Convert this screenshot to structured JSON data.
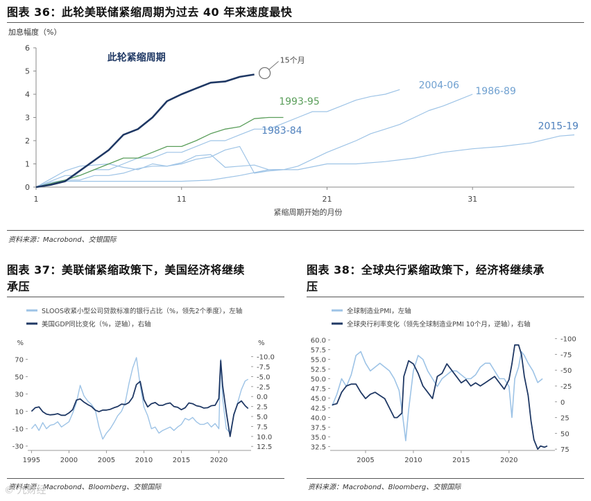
{
  "charts": {
    "c36": {
      "title": "图表 36：此轮美联储紧缩周期为过去 40 年来速度最快",
      "source": "资料来源：Macrobond、交银国际",
      "chart_data": {
        "type": "line",
        "ylabel": "加息幅度（%）",
        "xlabel": "紧缩周期开始的月份",
        "xlim": [
          1,
          38
        ],
        "ylim": [
          0,
          6
        ],
        "xticks": [
          1,
          11,
          21,
          31
        ],
        "yticks": [
          0,
          1,
          2,
          3,
          4,
          5,
          6
        ],
        "annotation": "15个月",
        "series": [
          {
            "name": "此轮紧缩周期",
            "color": "#1f3864",
            "width": 2.6,
            "x": [
              1,
              2,
              3,
              4,
              5,
              6,
              7,
              8,
              9,
              10,
              11,
              12,
              13,
              14,
              15,
              16
            ],
            "y": [
              0.0,
              0.1,
              0.25,
              0.7,
              1.15,
              1.6,
              2.25,
              2.5,
              3.0,
              3.7,
              4.0,
              4.25,
              4.5,
              4.55,
              4.75,
              4.85
            ]
          },
          {
            "name": "1993-95",
            "color": "#5a9e5a",
            "width": 1.3,
            "x": [
              1,
              2,
              3,
              4,
              5,
              6,
              7,
              8,
              9,
              10,
              11,
              12,
              13,
              14,
              15,
              16,
              17,
              18
            ],
            "y": [
              0.0,
              0.15,
              0.3,
              0.5,
              0.75,
              1.0,
              1.25,
              1.25,
              1.5,
              1.75,
              1.75,
              2.0,
              2.3,
              2.5,
              2.6,
              2.95,
              3.0,
              3.0
            ]
          },
          {
            "name": "1983-84",
            "color": "#9dc3e6",
            "width": 1.2,
            "x": [
              1,
              2,
              3,
              4,
              5,
              6,
              7,
              8,
              9,
              10,
              11,
              12,
              13,
              14,
              15,
              16,
              17,
              18
            ],
            "y": [
              0.0,
              0.35,
              0.7,
              0.9,
              0.95,
              1.0,
              0.85,
              0.75,
              1.0,
              0.9,
              1.05,
              1.35,
              1.4,
              0.85,
              0.9,
              0.95,
              0.75,
              0.75
            ]
          },
          {
            "name": "2004-06",
            "color": "#9dc3e6",
            "width": 1.2,
            "x": [
              1,
              2,
              3,
              4,
              5,
              6,
              7,
              8,
              9,
              10,
              11,
              12,
              13,
              14,
              15,
              16,
              17,
              18,
              19,
              20,
              21,
              22,
              23,
              24,
              25,
              26
            ],
            "y": [
              0.0,
              0.25,
              0.5,
              0.5,
              0.75,
              0.75,
              1.0,
              1.25,
              1.25,
              1.5,
              1.5,
              1.75,
              2.0,
              2.0,
              2.25,
              2.5,
              2.5,
              2.75,
              3.0,
              3.25,
              3.25,
              3.5,
              3.75,
              3.9,
              4.0,
              4.2
            ]
          },
          {
            "name": "1986-89",
            "color": "#9dc3e6",
            "width": 1.2,
            "x": [
              1,
              2,
              3,
              4,
              5,
              6,
              7,
              8,
              9,
              10,
              11,
              12,
              13,
              14,
              15,
              16,
              17,
              18,
              19,
              20,
              21,
              22,
              23,
              24,
              25,
              26,
              27,
              28,
              29,
              30,
              31
            ],
            "y": [
              0.0,
              0.2,
              0.3,
              0.3,
              0.5,
              0.5,
              0.6,
              0.8,
              0.9,
              0.9,
              1.0,
              1.2,
              1.3,
              1.6,
              1.75,
              0.6,
              0.7,
              0.75,
              0.9,
              1.2,
              1.5,
              1.75,
              2.0,
              2.3,
              2.5,
              2.7,
              3.0,
              3.3,
              3.5,
              3.75,
              4.0
            ]
          },
          {
            "name": "2015-19",
            "color": "#9dc3e6",
            "width": 1.2,
            "x": [
              1,
              3,
              5,
              7,
              9,
              11,
              13,
              15,
              17,
              19,
              21,
              23,
              25,
              27,
              29,
              31,
              33,
              35,
              37,
              38
            ],
            "y": [
              0.0,
              0.25,
              0.25,
              0.25,
              0.25,
              0.25,
              0.3,
              0.5,
              0.75,
              0.75,
              1.0,
              1.0,
              1.1,
              1.25,
              1.5,
              1.65,
              1.75,
              1.9,
              2.2,
              2.25
            ]
          }
        ],
        "labels": [
          {
            "text": "1993-95",
            "color": "#5a9e5a"
          },
          {
            "text": "1983-84",
            "color": "#4f81bd"
          },
          {
            "text": "2004-06",
            "color": "#6fa0d0"
          },
          {
            "text": "1986-89",
            "color": "#6fa0d0"
          },
          {
            "text": "2015-19",
            "color": "#4f81bd"
          },
          {
            "text": "此轮紧缩周期",
            "color": "#1f3864"
          }
        ]
      }
    },
    "c37": {
      "title_line1": "图表 37：美联储紧缩政策下，美国经济将继续",
      "title_line2": "承压",
      "source": "资料来源：Macrobond、Bloomberg、交银国际",
      "chart_data": {
        "type": "line",
        "left_unit": "%",
        "right_unit": "%",
        "xlim": [
          1994.5,
          2024.3
        ],
        "left_ylim": [
          -35,
          80
        ],
        "right_ylim": [
          13.5,
          -11.5
        ],
        "xticks": [
          1995,
          2000,
          2005,
          2010,
          2015,
          2020
        ],
        "left_yticks": [
          -30,
          -10,
          10,
          30,
          50,
          70
        ],
        "right_yticks": [
          -10.0,
          -7.5,
          -5.0,
          -2.5,
          0.0,
          2.5,
          5.0,
          7.5,
          10.0,
          12.5
        ],
        "right_ytick_labels": [
          "-10.0",
          "-7.5",
          "-5.0",
          "-2.5",
          "0.0",
          "2.5",
          "5.0",
          "7.5",
          "10.0",
          "12.5"
        ],
        "series": [
          {
            "name": "SLOOS收紧小型公司贷款标准的银行占比（%，领先2个季度），左轴",
            "axis": "left",
            "color": "#9dc3e6",
            "width": 1.4,
            "x": [
              1995,
              1995.5,
              1996,
              1996.5,
              1997,
              1997.5,
              1998,
              1998.5,
              1999,
              1999.5,
              2000,
              2000.5,
              2001,
              2001.5,
              2002,
              2002.5,
              2003,
              2003.5,
              2004,
              2004.5,
              2005,
              2005.5,
              2006,
              2006.5,
              2007,
              2007.5,
              2008,
              2008.5,
              2009,
              2009.5,
              2010,
              2010.5,
              2011,
              2011.5,
              2012,
              2012.5,
              2013,
              2013.5,
              2014,
              2014.5,
              2015,
              2015.5,
              2016,
              2016.5,
              2017,
              2017.5,
              2018,
              2018.5,
              2019,
              2019.5,
              2020,
              2020.25,
              2020.5,
              2021,
              2021.5,
              2022,
              2022.5,
              2023,
              2023.5,
              2023.9
            ],
            "y": [
              -10,
              -5,
              -12,
              -3,
              -10,
              -6,
              -5,
              -2,
              -8,
              -5,
              -2,
              8,
              20,
              40,
              28,
              22,
              18,
              12,
              -8,
              -22,
              -15,
              -10,
              -3,
              5,
              10,
              20,
              42,
              60,
              72,
              40,
              15,
              5,
              -10,
              -8,
              -15,
              -12,
              -10,
              -8,
              -12,
              -8,
              -5,
              2,
              0,
              3,
              -2,
              -5,
              -5,
              -3,
              -8,
              -4,
              -10,
              70,
              25,
              -10,
              -15,
              5,
              20,
              35,
              45,
              47
            ]
          },
          {
            "name": "美国GDP同比变化（%，逆轴），右轴",
            "axis": "right",
            "color": "#1f3864",
            "width": 1.8,
            "x": [
              1995,
              1995.5,
              1996,
              1996.5,
              1997,
              1997.5,
              1998,
              1998.5,
              1999,
              1999.5,
              2000,
              2000.5,
              2001,
              2001.5,
              2002,
              2002.5,
              2003,
              2003.5,
              2004,
              2004.5,
              2005,
              2005.5,
              2006,
              2006.5,
              2007,
              2007.5,
              2008,
              2008.5,
              2009,
              2009.5,
              2010,
              2010.5,
              2011,
              2011.5,
              2012,
              2012.5,
              2013,
              2013.5,
              2014,
              2014.5,
              2015,
              2015.5,
              2016,
              2016.5,
              2017,
              2017.5,
              2018,
              2018.5,
              2019,
              2019.5,
              2020,
              2020.25,
              2020.5,
              2021,
              2021.5,
              2022,
              2022.5,
              2023,
              2023.5,
              2023.9
            ],
            "y": [
              3.7,
              2.8,
              2.6,
              3.8,
              4.4,
              4.6,
              4.5,
              4.3,
              4.7,
              4.7,
              4.1,
              3.3,
              0.9,
              0.6,
              1.4,
              2.0,
              2.5,
              3.4,
              3.8,
              3.4,
              3.4,
              3.2,
              2.8,
              2.5,
              1.9,
              2.0,
              1.5,
              0.2,
              -3.0,
              -3.8,
              0.8,
              2.6,
              1.8,
              1.5,
              2.2,
              2.2,
              1.8,
              1.6,
              2.5,
              2.7,
              3.3,
              2.8,
              1.6,
              1.8,
              2.3,
              2.5,
              2.9,
              2.8,
              2.3,
              2.2,
              0.5,
              -9.0,
              -2.8,
              4.0,
              10.0,
              4.5,
              1.8,
              1.1,
              2.3,
              3.0
            ]
          }
        ]
      }
    },
    "c38": {
      "title_line1": "图表 38：全球央行紧缩政策下，经济将继续承",
      "title_line2": "压",
      "source": "资料来源：Macrobond、Bloomberg、交银国际",
      "chart_data": {
        "type": "line",
        "xlim": [
          2001.3,
          2024.8
        ],
        "left_ylim": [
          31.5,
          61
        ],
        "right_ylim": [
          77,
          -104
        ],
        "xticks": [
          2005,
          2010,
          2015,
          2020
        ],
        "left_yticks": [
          32.5,
          35.0,
          37.5,
          40.0,
          42.5,
          45.0,
          47.5,
          50.0,
          52.5,
          55.0,
          57.5,
          60.0
        ],
        "left_ytick_labels": [
          "32.5",
          "35.0",
          "37.5",
          "40.0",
          "42.5",
          "45.0",
          "47.5",
          "50.0",
          "52.5",
          "55.0",
          "57.5",
          "60.0"
        ],
        "right_yticks": [
          -100,
          -75,
          -50,
          -25,
          0,
          25,
          50,
          75
        ],
        "right_ytick_labels": [
          "-100",
          "-75",
          "-50",
          "-25",
          "0",
          "25",
          "50",
          "75"
        ],
        "series": [
          {
            "name": "全球制造业PMI，左轴",
            "axis": "left",
            "color": "#9dc3e6",
            "width": 1.6,
            "x": [
              2001.5,
              2002,
              2002.5,
              2003,
              2003.5,
              2004,
              2004.5,
              2005,
              2005.5,
              2006,
              2006.5,
              2007,
              2007.5,
              2008,
              2008.5,
              2008.9,
              2009.2,
              2009.5,
              2010,
              2010.5,
              2011,
              2011.5,
              2012,
              2012.5,
              2013,
              2013.5,
              2014,
              2014.5,
              2015,
              2015.5,
              2016,
              2016.5,
              2017,
              2017.5,
              2018,
              2018.5,
              2019,
              2019.5,
              2020,
              2020.3,
              2020.6,
              2021,
              2021.3,
              2021.6,
              2022,
              2022.5,
              2023,
              2023.5
            ],
            "y": [
              43,
              46,
              50,
              48,
              51,
              56,
              57,
              54,
              52,
              53,
              54,
              53,
              52,
              50,
              47,
              40,
              34,
              42,
              52,
              56,
              55,
              52,
              50,
              48,
              50,
              51,
              52,
              52,
              51,
              50,
              50,
              51,
              53,
              54,
              54,
              52,
              50,
              50,
              48,
              40,
              50,
              53,
              57,
              56,
              54,
              52,
              49,
              50
            ]
          },
          {
            "name": "全球央行利率变化（领先全球制造业PMI 10个月，逆轴），右轴",
            "axis": "right",
            "color": "#1f3864",
            "width": 1.8,
            "x": [
              2001.5,
              2002,
              2002.5,
              2003,
              2003.5,
              2004,
              2004.5,
              2005,
              2005.5,
              2006,
              2006.5,
              2007,
              2007.5,
              2008,
              2008.3,
              2008.8,
              2009,
              2009.5,
              2010,
              2010.5,
              2011,
              2011.5,
              2012,
              2012.5,
              2013,
              2013.5,
              2014,
              2014.5,
              2015,
              2015.5,
              2016,
              2016.5,
              2017,
              2017.5,
              2018,
              2018.5,
              2019,
              2019.5,
              2020,
              2020.3,
              2020.6,
              2021,
              2021.3,
              2021.6,
              2022,
              2022.3,
              2022.6,
              2023,
              2023.3,
              2023.7,
              2024
            ],
            "y": [
              5,
              3,
              -15,
              -25,
              -28,
              -28,
              -15,
              -5,
              -12,
              -15,
              -10,
              -5,
              10,
              25,
              25,
              18,
              -40,
              -65,
              -60,
              -45,
              -25,
              -15,
              -5,
              -40,
              -45,
              -60,
              -50,
              -40,
              -30,
              -35,
              -25,
              -30,
              -25,
              -30,
              -35,
              -40,
              -30,
              -20,
              -35,
              -60,
              -90,
              -90,
              -75,
              -40,
              -10,
              30,
              60,
              75,
              70,
              72,
              70
            ]
          }
        ]
      }
    },
    "watermark": "© 九财经"
  }
}
